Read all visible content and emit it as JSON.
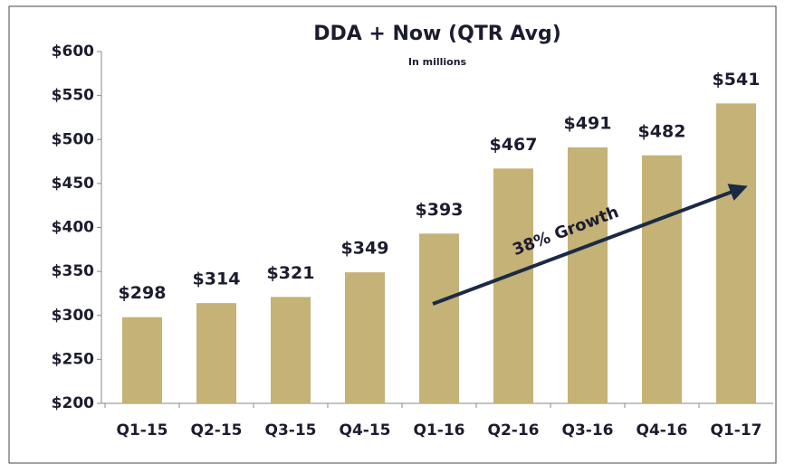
{
  "chart_data": {
    "type": "bar",
    "title": "DDA + Now (QTR Avg)",
    "subtitle": "In millions",
    "categories": [
      "Q1-15",
      "Q2-15",
      "Q3-15",
      "Q4-15",
      "Q1-16",
      "Q2-16",
      "Q3-16",
      "Q4-16",
      "Q1-17"
    ],
    "values": [
      298,
      314,
      321,
      349,
      393,
      467,
      491,
      482,
      541
    ],
    "value_labels": [
      "$298",
      "$314",
      "$321",
      "$349",
      "$393",
      "$467",
      "$491",
      "$482",
      "$541"
    ],
    "color": "#c4b276",
    "ylim": [
      200,
      600
    ],
    "yticks": [
      {
        "value": 200,
        "label": "$200"
      },
      {
        "value": 250,
        "label": "$250"
      },
      {
        "value": 300,
        "label": "$300"
      },
      {
        "value": 350,
        "label": "$350"
      },
      {
        "value": 400,
        "label": "$400"
      },
      {
        "value": 450,
        "label": "$450"
      },
      {
        "value": 500,
        "label": "$500"
      },
      {
        "value": 550,
        "label": "$550"
      },
      {
        "value": 600,
        "label": "$600"
      }
    ],
    "grid": false,
    "annotation": "38% Growth"
  }
}
